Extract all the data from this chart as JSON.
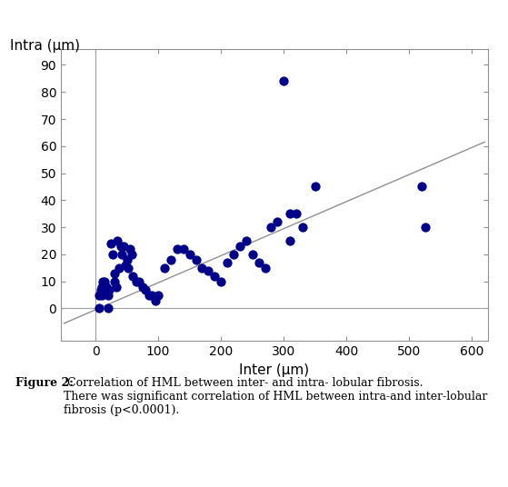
{
  "x_data": [
    5,
    5,
    8,
    10,
    10,
    12,
    15,
    15,
    18,
    18,
    20,
    20,
    22,
    25,
    28,
    30,
    30,
    33,
    35,
    38,
    40,
    42,
    45,
    48,
    50,
    52,
    55,
    58,
    60,
    65,
    70,
    75,
    80,
    85,
    90,
    95,
    100,
    110,
    120,
    130,
    140,
    150,
    160,
    170,
    180,
    190,
    200,
    210,
    220,
    230,
    240,
    250,
    260,
    270,
    280,
    290,
    300,
    310,
    320,
    330,
    310,
    350,
    520,
    525
  ],
  "y_data": [
    5,
    0,
    7,
    8,
    5,
    10,
    10,
    8,
    8,
    7,
    5,
    0,
    7,
    24,
    20,
    13,
    10,
    8,
    25,
    15,
    23,
    20,
    23,
    16,
    18,
    15,
    22,
    20,
    12,
    10,
    10,
    8,
    7,
    5,
    5,
    3,
    5,
    15,
    18,
    22,
    22,
    20,
    18,
    15,
    14,
    12,
    10,
    17,
    20,
    23,
    25,
    20,
    17,
    15,
    30,
    32,
    84,
    35,
    35,
    30,
    25,
    45,
    45,
    30
  ],
  "scatter_color": "#00008B",
  "scatter_size": 55,
  "regression_color": "#909090",
  "regression_linewidth": 1.0,
  "regression_x0": -50,
  "regression_x1": 620,
  "regression_y0": -5.5,
  "regression_y1": 61.5,
  "vline_x": 0,
  "hline_y": 0,
  "gridline_color": "#A0A0A0",
  "xlabel": "Inter (μm)",
  "ylabel": "Intra (μm)",
  "xlim": [
    -55,
    625
  ],
  "ylim": [
    -12,
    96
  ],
  "xticks": [
    0,
    100,
    200,
    300,
    400,
    500,
    600
  ],
  "yticks": [
    0,
    10,
    20,
    30,
    40,
    50,
    60,
    70,
    80,
    90
  ],
  "xlabel_fontsize": 11,
  "ylabel_fontsize": 11,
  "tick_fontsize": 10,
  "caption_bold": "Figure 2:",
  "caption_normal": " Correlation of HML between inter- and intra- lobular fibrosis.\nThere was significant correlation of HML between intra-and inter-lobular\nfibrosis (p<0.0001).",
  "caption_fontsize": 9,
  "spine_color": "#909090",
  "bg_color": "#ffffff"
}
